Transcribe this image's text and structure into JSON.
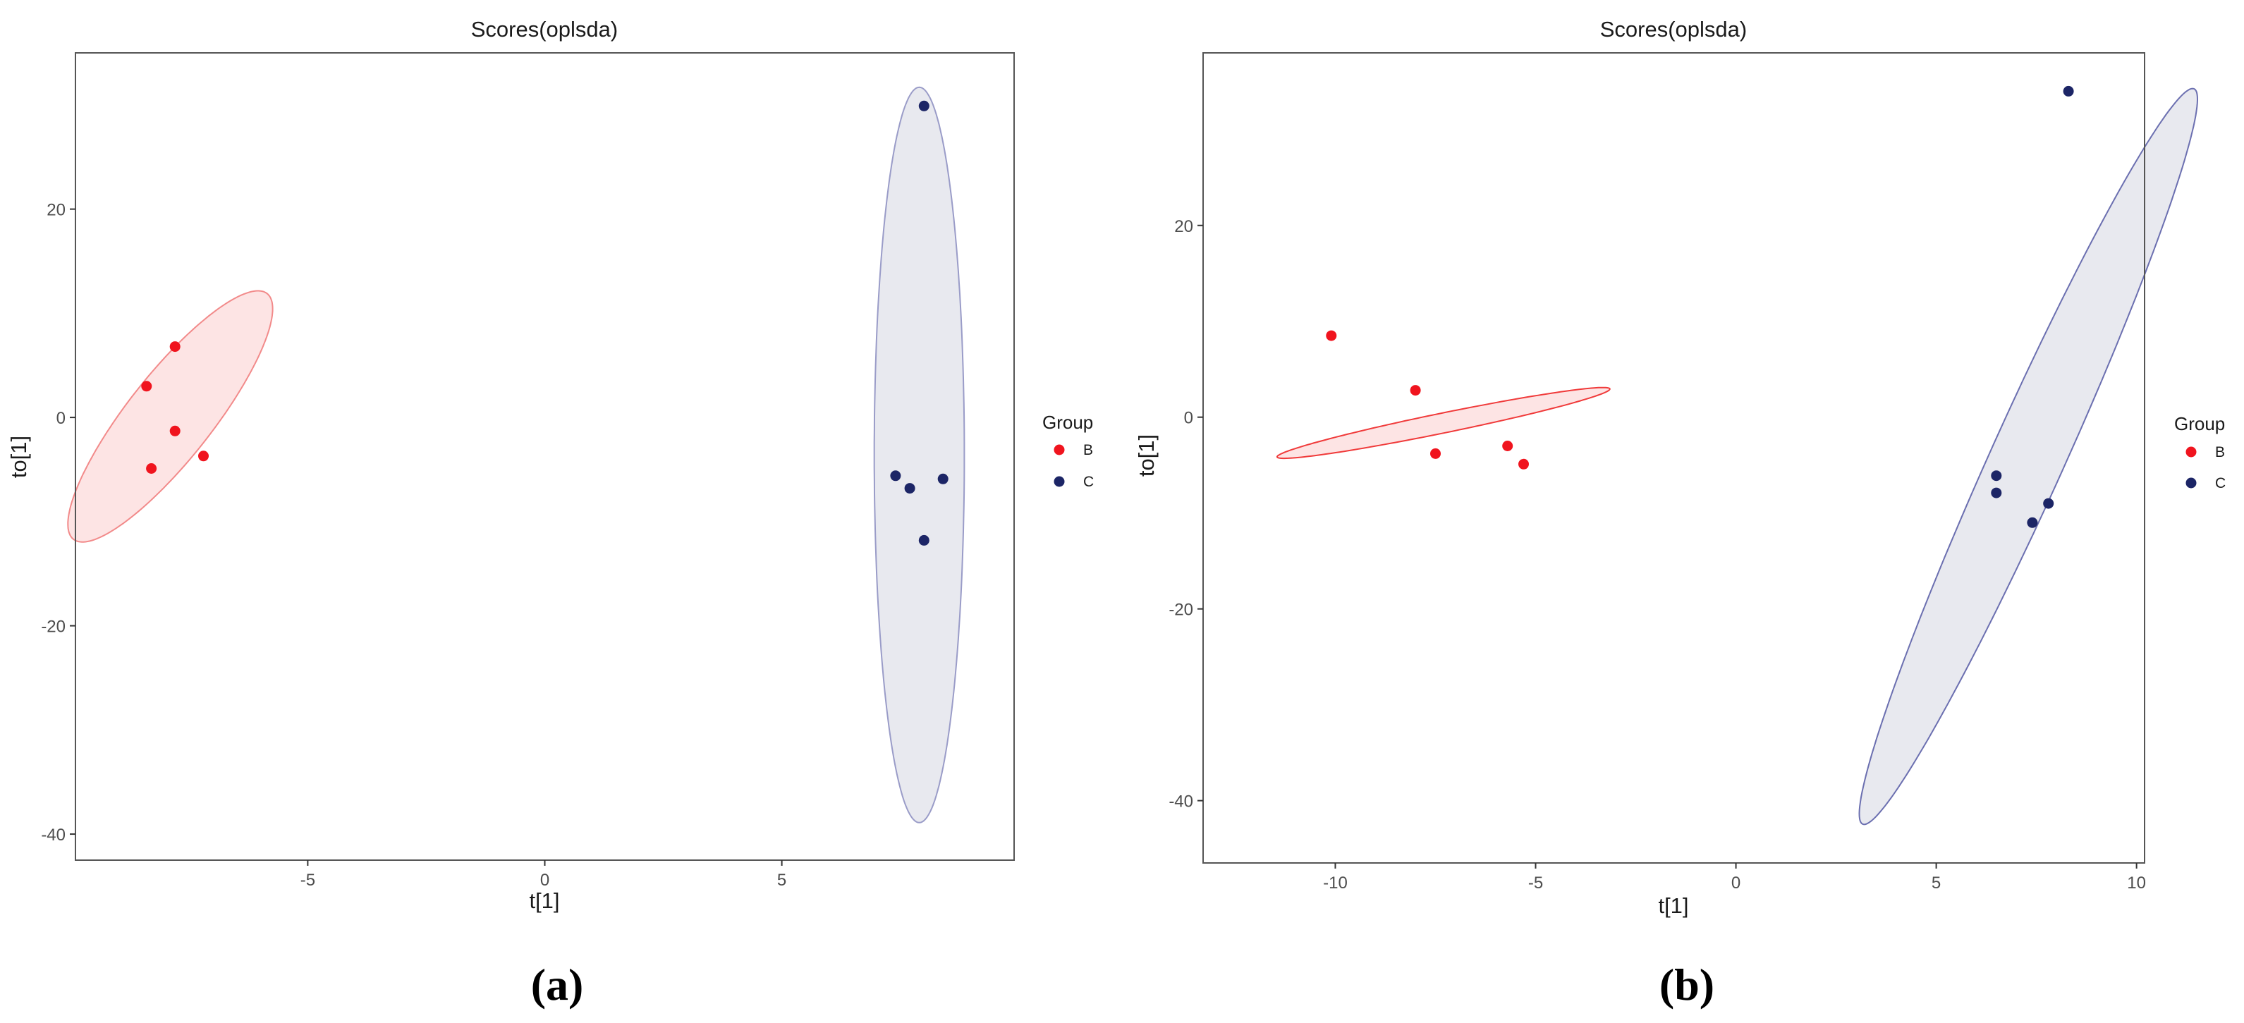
{
  "chart_data": [
    {
      "type": "scatter",
      "panel_label": "(a)",
      "title": "Scores(oplsda)",
      "xlabel": "t[1]",
      "ylabel": "to[1]",
      "xlim": [
        -9.9,
        9.9
      ],
      "ylim": [
        -42.5,
        35.0
      ],
      "xticks": [
        -5,
        0,
        5
      ],
      "yticks": [
        -40,
        -20,
        0,
        20
      ],
      "grid": false,
      "legend": {
        "title": "Group",
        "position": "right",
        "entries": [
          "B",
          "C"
        ]
      },
      "series": [
        {
          "name": "B",
          "color": "#f0141e",
          "fill": "#fde4e4",
          "stroke": "#f28a8a",
          "points": [
            {
              "x": -7.8,
              "y": 6.8
            },
            {
              "x": -8.4,
              "y": 3.0
            },
            {
              "x": -7.8,
              "y": -1.3
            },
            {
              "x": -7.2,
              "y": -3.7
            },
            {
              "x": -8.3,
              "y": -4.9
            }
          ],
          "ellipse": {
            "cx": -7.9,
            "cy": 0.1,
            "rx": 1.1,
            "ry": 12.2,
            "angle": -8.8
          }
        },
        {
          "name": "C",
          "color": "#1c2566",
          "fill": "#e8e9ef",
          "stroke": "#9a9cc8",
          "points": [
            {
              "x": 8.0,
              "y": 29.9
            },
            {
              "x": 7.4,
              "y": -5.6
            },
            {
              "x": 7.7,
              "y": -6.8
            },
            {
              "x": 8.4,
              "y": -5.9
            },
            {
              "x": 8.0,
              "y": -11.8
            }
          ],
          "ellipse": {
            "cx": 7.9,
            "cy": -3.6,
            "rx": 0.95,
            "ry": 35.3,
            "angle": 0
          }
        }
      ]
    },
    {
      "type": "scatter",
      "panel_label": "(b)",
      "title": "Scores(oplsda)",
      "xlabel": "t[1]",
      "ylabel": "to[1]",
      "xlim": [
        -13.3,
        10.2
      ],
      "ylim": [
        -46.5,
        38.0
      ],
      "xticks": [
        -10,
        -5,
        0,
        5,
        10
      ],
      "yticks": [
        -40,
        -20,
        0,
        20
      ],
      "grid": false,
      "legend": {
        "title": "Group",
        "position": "right",
        "entries": [
          "B",
          "C"
        ]
      },
      "series": [
        {
          "name": "B",
          "color": "#f0141e",
          "fill": "#fde4e4",
          "stroke": "#f03a3a",
          "points": [
            {
              "x": -10.1,
              "y": 8.5
            },
            {
              "x": -8.0,
              "y": 2.8
            },
            {
              "x": -7.5,
              "y": -3.8
            },
            {
              "x": -5.7,
              "y": -3.0
            },
            {
              "x": -5.3,
              "y": -4.9
            }
          ],
          "ellipse": {
            "cx": -7.3,
            "cy": -0.6,
            "rx": 5.5,
            "ry": 0.8,
            "angle": 41.5
          }
        },
        {
          "name": "C",
          "color": "#1c2566",
          "fill": "#e8e9ef",
          "stroke": "#6b6fb0",
          "points": [
            {
              "x": 8.3,
              "y": 34.0
            },
            {
              "x": 6.5,
              "y": -6.1
            },
            {
              "x": 6.5,
              "y": -7.9
            },
            {
              "x": 7.4,
              "y": -11.0
            },
            {
              "x": 7.8,
              "y": -9.0
            }
          ],
          "ellipse": {
            "cx": 7.3,
            "cy": -4.1,
            "rx": 1.0,
            "ry": 38.6,
            "angle": -6.1
          }
        }
      ]
    }
  ]
}
